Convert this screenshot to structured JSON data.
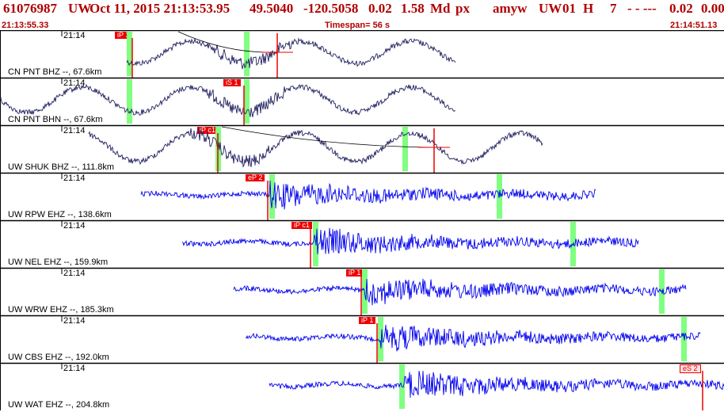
{
  "header": {
    "event_id": "61076987",
    "network": "UW",
    "datetime": "Oct 11, 2015 21:13:53.95",
    "lat": "49.5040",
    "lon": "-120.5058",
    "depth": "0.02",
    "magnitude": "1.58",
    "mag_type": "Md",
    "event_type": "px",
    "author": "amyw",
    "source": "UW",
    "version": "01",
    "quality": "H",
    "count": "7",
    "dashes": "- - ---",
    "rms": "0.02",
    "err": "0.00"
  },
  "subheader": {
    "start_time": "21:13:55.33",
    "timespan": "Timespan=  56 s",
    "end_time": "21:14:51.13"
  },
  "colors": {
    "header_text": "#b00000",
    "wave_dark": "#202060",
    "wave_blue": "#0000ee",
    "pick_red": "#ee0000",
    "theo_green": "#80ff80"
  },
  "panels": [
    {
      "time_label": "21:14",
      "name": "CN PNT BHZ --, 67.6km",
      "pick": "iP 1",
      "pick_style": "filled",
      "wave": "dark"
    },
    {
      "time_label": "21:14",
      "name": "CN PNT BHN --, 67.6km",
      "pick": "iS 1",
      "pick_style": "filled",
      "wave": "dark"
    },
    {
      "time_label": "21:14",
      "name": "UW SHUK BHZ --, 111.8km",
      "pick": "iP c1",
      "pick_style": "filled",
      "wave": "dark"
    },
    {
      "time_label": "21:14",
      "name": "UW RPW EHZ --, 138.6km",
      "pick": "eP 2",
      "pick_style": "filled",
      "wave": "blue"
    },
    {
      "time_label": "21:14",
      "name": "UW NEL EHZ --, 159.9km",
      "pick": "iP c1",
      "pick_style": "filled",
      "wave": "blue"
    },
    {
      "time_label": "21:14",
      "name": "UW WRW EHZ --, 185.3km",
      "pick": "iP 1",
      "pick_style": "filled",
      "wave": "blue"
    },
    {
      "time_label": "21:14",
      "name": "UW CBS EHZ --, 192.0km",
      "pick": "iP 1",
      "pick_style": "filled",
      "wave": "blue"
    },
    {
      "time_label": "21:14",
      "name": "UW WAT EHZ --, 204.8km",
      "pick": "eS 2",
      "pick_style": "outline",
      "wave": "blue"
    }
  ]
}
